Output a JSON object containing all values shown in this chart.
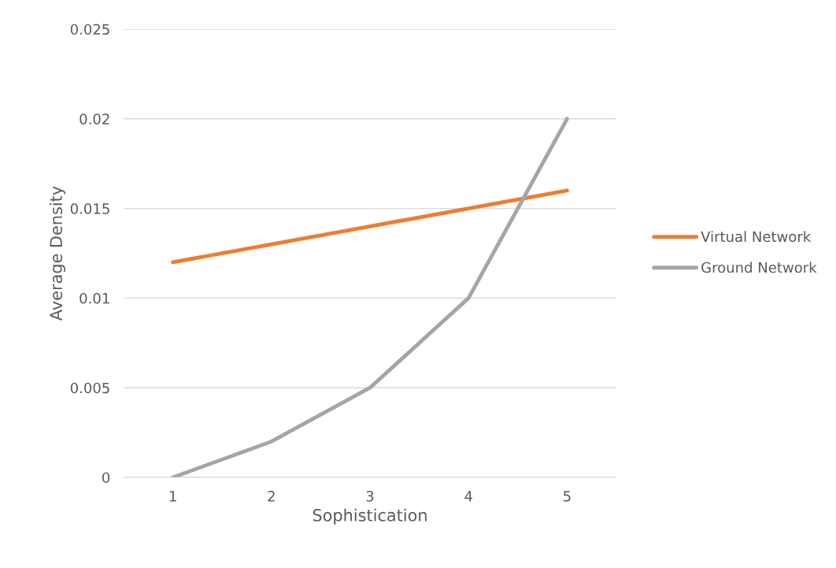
{
  "chart_data": {
    "type": "line",
    "xlabel": "Sophistication",
    "ylabel": "Average Density",
    "categories": [
      "1",
      "2",
      "3",
      "4",
      "5"
    ],
    "series": [
      {
        "name": "Virtual Network",
        "color": "#ed7d31",
        "values": [
          0.012,
          0.013,
          0.014,
          0.015,
          0.016
        ]
      },
      {
        "name": "Ground Network",
        "color": "#a5a5a5",
        "values": [
          0,
          0.002,
          0.005,
          0.01,
          0.02
        ]
      }
    ],
    "ylim": [
      0,
      0.025
    ],
    "yticks": [
      0,
      0.005,
      0.01,
      0.015,
      0.02,
      0.025
    ],
    "grid": "y",
    "legend": "right",
    "marker": "none",
    "line_style": "solid"
  }
}
